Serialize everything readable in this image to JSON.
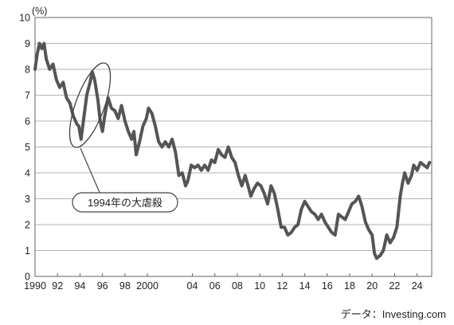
{
  "chart_data": {
    "type": "line",
    "unit_label": "(%)",
    "xlim": [
      1990,
      2025.3
    ],
    "ylim": [
      0,
      10
    ],
    "y_ticks": [
      0,
      1,
      2,
      3,
      4,
      5,
      6,
      7,
      8,
      9,
      10
    ],
    "x_ticks": [
      {
        "value": 1990,
        "label": "1990"
      },
      {
        "value": 1992,
        "label": "92"
      },
      {
        "value": 1994,
        "label": "94"
      },
      {
        "value": 1996,
        "label": "96"
      },
      {
        "value": 1998,
        "label": "98"
      },
      {
        "value": 2000,
        "label": "2000"
      },
      {
        "value": 2004,
        "label": "04"
      },
      {
        "value": 2006,
        "label": "06"
      },
      {
        "value": 2008,
        "label": "08"
      },
      {
        "value": 2010,
        "label": "10"
      },
      {
        "value": 2012,
        "label": "12"
      },
      {
        "value": 2014,
        "label": "14"
      },
      {
        "value": 2016,
        "label": "16"
      },
      {
        "value": 2018,
        "label": "18"
      },
      {
        "value": 2020,
        "label": "20"
      },
      {
        "value": 2022,
        "label": "22"
      },
      {
        "value": 2024,
        "label": "24"
      }
    ],
    "grid": "horizontal",
    "series": [
      {
        "color": "#555555",
        "x": [
          1990.0,
          1990.2,
          1990.4,
          1990.6,
          1990.8,
          1991.0,
          1991.3,
          1991.6,
          1991.9,
          1992.2,
          1992.5,
          1992.8,
          1993.1,
          1993.4,
          1993.7,
          1993.9,
          1994.1,
          1994.3,
          1994.6,
          1994.9,
          1995.1,
          1995.3,
          1995.6,
          1995.8,
          1996.0,
          1996.2,
          1996.5,
          1996.8,
          1997.1,
          1997.4,
          1997.7,
          1998.0,
          1998.3,
          1998.6,
          1998.8,
          1999.0,
          1999.3,
          1999.6,
          1999.9,
          2000.1,
          2000.4,
          2000.7,
          2001.0,
          2001.3,
          2001.6,
          2001.9,
          2002.2,
          2002.5,
          2002.8,
          2003.1,
          2003.4,
          2003.6,
          2003.9,
          2004.2,
          2004.5,
          2004.8,
          2005.1,
          2005.4,
          2005.7,
          2006.0,
          2006.3,
          2006.6,
          2006.9,
          2007.2,
          2007.5,
          2007.8,
          2008.1,
          2008.4,
          2008.7,
          2008.9,
          2009.2,
          2009.5,
          2009.8,
          2010.1,
          2010.4,
          2010.7,
          2011.0,
          2011.3,
          2011.6,
          2011.9,
          2012.2,
          2012.5,
          2012.8,
          2013.1,
          2013.4,
          2013.7,
          2014.0,
          2014.3,
          2014.6,
          2014.9,
          2015.2,
          2015.5,
          2015.8,
          2016.1,
          2016.4,
          2016.7,
          2017.0,
          2017.3,
          2017.6,
          2017.9,
          2018.2,
          2018.5,
          2018.8,
          2019.1,
          2019.4,
          2019.7,
          2020.0,
          2020.2,
          2020.4,
          2020.7,
          2021.0,
          2021.3,
          2021.6,
          2021.9,
          2022.2,
          2022.5,
          2022.7,
          2022.9,
          2023.2,
          2023.5,
          2023.7,
          2024.0,
          2024.3,
          2024.6,
          2024.9,
          2025.1
        ],
        "y": [
          8.0,
          8.6,
          9.0,
          8.8,
          9.0,
          8.4,
          8.0,
          8.2,
          7.6,
          7.3,
          7.5,
          6.9,
          6.7,
          6.2,
          5.9,
          5.8,
          5.3,
          6.0,
          7.0,
          7.5,
          7.9,
          7.6,
          6.8,
          6.0,
          5.6,
          6.2,
          6.9,
          6.5,
          6.4,
          6.1,
          6.6,
          6.0,
          5.6,
          5.3,
          5.6,
          4.7,
          5.2,
          5.8,
          6.1,
          6.5,
          6.3,
          5.8,
          5.2,
          5.0,
          5.2,
          5.0,
          5.3,
          4.8,
          3.9,
          4.0,
          3.5,
          3.7,
          4.3,
          4.2,
          4.3,
          4.1,
          4.3,
          4.1,
          4.5,
          4.4,
          4.9,
          4.7,
          4.6,
          5.0,
          4.6,
          4.4,
          3.9,
          3.5,
          3.9,
          3.6,
          3.1,
          3.4,
          3.6,
          3.5,
          3.2,
          2.8,
          3.5,
          3.2,
          2.6,
          1.9,
          1.9,
          1.6,
          1.7,
          1.9,
          2.0,
          2.6,
          2.9,
          2.7,
          2.5,
          2.4,
          2.2,
          2.4,
          2.1,
          1.9,
          1.7,
          1.6,
          2.4,
          2.3,
          2.2,
          2.5,
          2.8,
          2.9,
          3.1,
          2.7,
          2.1,
          1.8,
          1.6,
          0.9,
          0.7,
          0.8,
          1.0,
          1.6,
          1.3,
          1.5,
          1.9,
          3.1,
          3.6,
          4.0,
          3.6,
          3.9,
          4.3,
          4.1,
          4.4,
          4.3,
          4.2,
          4.4
        ]
      }
    ],
    "annotations": [
      {
        "text": "1994年の大虐殺",
        "target_x": 1994.0,
        "target_y": 4.8
      }
    ],
    "source": "データ：Investing.com"
  }
}
